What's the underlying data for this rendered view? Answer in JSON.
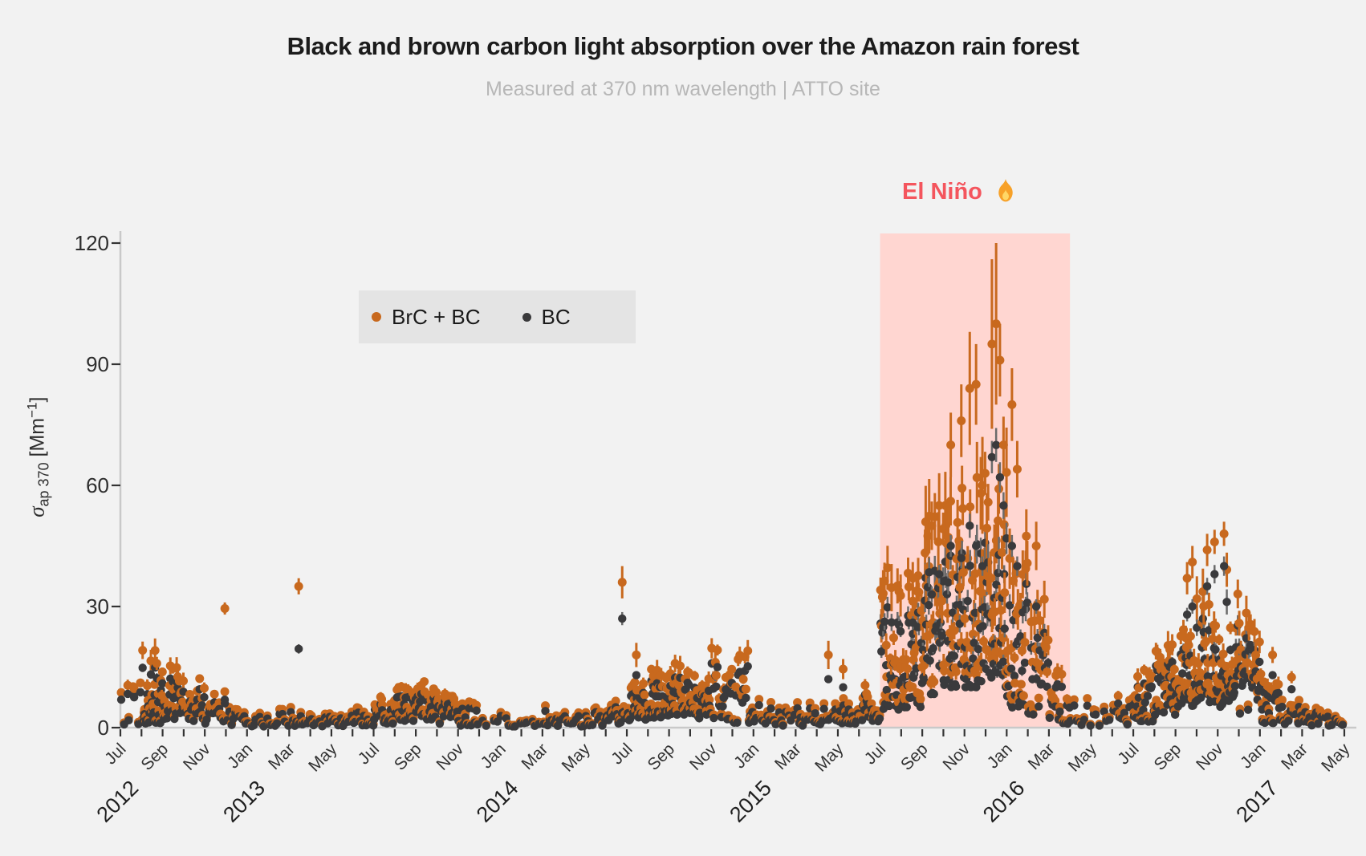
{
  "chart_data": {
    "type": "scatter",
    "title": "Black and brown carbon light absorption over the Amazon rain forest",
    "subtitle": "Measured at 370 nm wavelength | ATTO site",
    "ylabel": "σ_ap 370 [Mm⁻¹]",
    "ylabel_parts": {
      "sigma": "σ",
      "sub": "ap 370",
      "unit_open": " [Mm",
      "sup": "−1",
      "unit_close": "]"
    },
    "ylim": [
      0,
      120
    ],
    "yticks": [
      0,
      30,
      60,
      90,
      120
    ],
    "x_range": [
      "2012-07",
      "2017-05"
    ],
    "x_tick_every": "1 month",
    "x_label_every": "2 months",
    "year_labels": [
      "2012",
      "2013",
      "2014",
      "2015",
      "2016",
      "2017"
    ],
    "grid": false,
    "legend_position": "upper-left-inside",
    "series": [
      {
        "name": "BrC + BC",
        "color": "#c8691e"
      },
      {
        "name": "BC",
        "color": "#3a3a3c"
      }
    ],
    "annotation": {
      "label": "El Niño",
      "icon": "fire",
      "label_color": "#f4555d",
      "region_color": "#ffd6d1",
      "span": [
        "2015-07",
        "2016-04"
      ]
    },
    "monthly_envelope_fields": [
      "month",
      "n_points",
      "bc_min",
      "bc_max",
      "brc_over_bc_factor_optional"
    ],
    "monthly_envelope": [
      [
        "2012-07",
        8,
        0.5,
        9
      ],
      [
        "2012-08",
        30,
        1,
        16
      ],
      [
        "2012-09",
        26,
        2,
        13
      ],
      [
        "2012-10",
        18,
        1.5,
        10
      ],
      [
        "2012-11",
        14,
        1,
        8
      ],
      [
        "2012-12",
        10,
        0.5,
        5
      ],
      [
        "2013-01",
        8,
        0.3,
        3
      ],
      [
        "2013-02",
        8,
        0.3,
        3.5
      ],
      [
        "2013-03",
        10,
        0.4,
        4
      ],
      [
        "2013-04",
        8,
        0.3,
        3
      ],
      [
        "2013-05",
        10,
        0.3,
        3.5
      ],
      [
        "2013-06",
        12,
        0.5,
        4
      ],
      [
        "2013-07",
        20,
        1,
        6.5
      ],
      [
        "2013-08",
        24,
        1.5,
        8
      ],
      [
        "2013-09",
        22,
        2,
        9
      ],
      [
        "2013-10",
        18,
        1,
        7
      ],
      [
        "2013-11",
        12,
        0.5,
        5
      ],
      [
        "2013-12",
        4,
        0.2,
        2
      ],
      [
        "2014-01",
        6,
        0.3,
        3
      ],
      [
        "2014-02",
        5,
        0.3,
        2.5
      ],
      [
        "2014-03",
        10,
        0.4,
        4.5
      ],
      [
        "2014-04",
        8,
        0.3,
        3
      ],
      [
        "2014-05",
        10,
        0.5,
        4
      ],
      [
        "2014-06",
        16,
        0.8,
        6
      ],
      [
        "2014-07",
        22,
        1.5,
        9
      ],
      [
        "2014-08",
        26,
        2.5,
        12
      ],
      [
        "2014-09",
        26,
        3,
        13
      ],
      [
        "2014-10",
        20,
        2,
        10
      ],
      [
        "2014-11",
        18,
        2,
        16
      ],
      [
        "2014-12",
        16,
        1,
        17
      ],
      [
        "2015-01",
        10,
        0.5,
        6
      ],
      [
        "2015-02",
        8,
        0.5,
        4
      ],
      [
        "2015-03",
        10,
        0.5,
        5
      ],
      [
        "2015-04",
        10,
        0.8,
        6
      ],
      [
        "2015-05",
        14,
        1,
        7
      ],
      [
        "2015-06",
        18,
        1.5,
        9
      ],
      [
        "2015-07",
        26,
        3,
        30,
        1.3
      ],
      [
        "2015-08",
        28,
        5,
        33,
        1.3
      ],
      [
        "2015-09",
        28,
        8,
        40,
        1.3
      ],
      [
        "2015-10",
        28,
        10,
        44,
        1.3
      ],
      [
        "2015-11",
        28,
        10,
        48,
        1.3
      ],
      [
        "2015-12",
        28,
        10,
        60,
        1.3
      ],
      [
        "2016-01",
        24,
        5,
        38,
        1.3
      ],
      [
        "2016-02",
        20,
        3,
        24,
        1.3
      ],
      [
        "2016-03",
        16,
        1,
        12
      ],
      [
        "2016-04",
        8,
        0.5,
        6
      ],
      [
        "2016-05",
        6,
        0.4,
        4
      ],
      [
        "2016-06",
        10,
        0.8,
        6
      ],
      [
        "2016-07",
        20,
        1.5,
        11
      ],
      [
        "2016-08",
        24,
        3,
        17
      ],
      [
        "2016-09",
        26,
        5,
        22
      ],
      [
        "2016-10",
        26,
        6,
        30
      ],
      [
        "2016-11",
        26,
        5,
        34
      ],
      [
        "2016-12",
        24,
        3,
        24
      ],
      [
        "2017-01",
        18,
        1,
        11
      ],
      [
        "2017-02",
        12,
        0.5,
        6
      ],
      [
        "2017-03",
        10,
        0.5,
        4
      ],
      [
        "2017-04",
        8,
        0.4,
        3
      ]
    ],
    "outlier_fields": [
      "month",
      "fraction_of_month",
      "bc_value",
      "brc_bc_value",
      "brc_err_half"
    ],
    "outliers": [
      [
        "2012-11",
        0.95,
        6,
        29.5,
        1.5
      ],
      [
        "2013-03",
        0.45,
        19.5,
        35,
        2
      ],
      [
        "2014-06",
        0.78,
        27,
        36,
        4
      ],
      [
        "2014-07",
        0.45,
        13,
        18,
        3
      ],
      [
        "2015-04",
        0.55,
        12,
        18,
        3.5
      ],
      [
        "2015-05",
        0.25,
        10,
        14.5,
        2.5
      ],
      [
        "2015-08",
        0.55,
        26,
        37,
        4
      ],
      [
        "2015-09",
        0.45,
        33,
        50,
        6
      ],
      [
        "2015-09",
        0.8,
        38,
        55,
        8
      ],
      [
        "2015-10",
        0.35,
        45,
        70,
        8
      ],
      [
        "2015-10",
        0.85,
        42,
        76,
        9
      ],
      [
        "2015-11",
        0.25,
        50,
        84,
        14
      ],
      [
        "2015-11",
        0.55,
        45,
        85,
        10
      ],
      [
        "2015-11",
        0.85,
        40,
        60,
        12
      ],
      [
        "2015-12",
        0.3,
        67,
        95,
        21
      ],
      [
        "2015-12",
        0.5,
        70,
        100,
        20
      ],
      [
        "2015-12",
        0.68,
        62,
        91,
        9
      ],
      [
        "2015-12",
        0.85,
        55,
        70,
        7
      ],
      [
        "2016-01",
        0.25,
        45,
        80,
        9
      ],
      [
        "2016-01",
        0.5,
        40,
        64,
        7
      ],
      [
        "2016-02",
        0.4,
        30,
        45,
        6
      ],
      [
        "2016-09",
        0.55,
        28,
        37,
        4
      ],
      [
        "2016-09",
        0.8,
        30,
        41,
        4
      ],
      [
        "2016-10",
        0.5,
        35,
        44,
        4
      ],
      [
        "2016-10",
        0.85,
        38,
        46,
        3
      ],
      [
        "2016-11",
        0.3,
        40,
        48,
        3
      ],
      [
        "2017-01",
        0.6,
        13,
        18,
        2
      ],
      [
        "2017-02",
        0.5,
        9.5,
        12.5,
        1.5
      ]
    ]
  },
  "colors": {
    "background": "#f2f2f2",
    "axis_line": "#c9c9c9",
    "tick": "#333333",
    "legend_background": "#e4e4e4",
    "title": "#1c1c1c",
    "subtitle": "#b7b7b7"
  }
}
